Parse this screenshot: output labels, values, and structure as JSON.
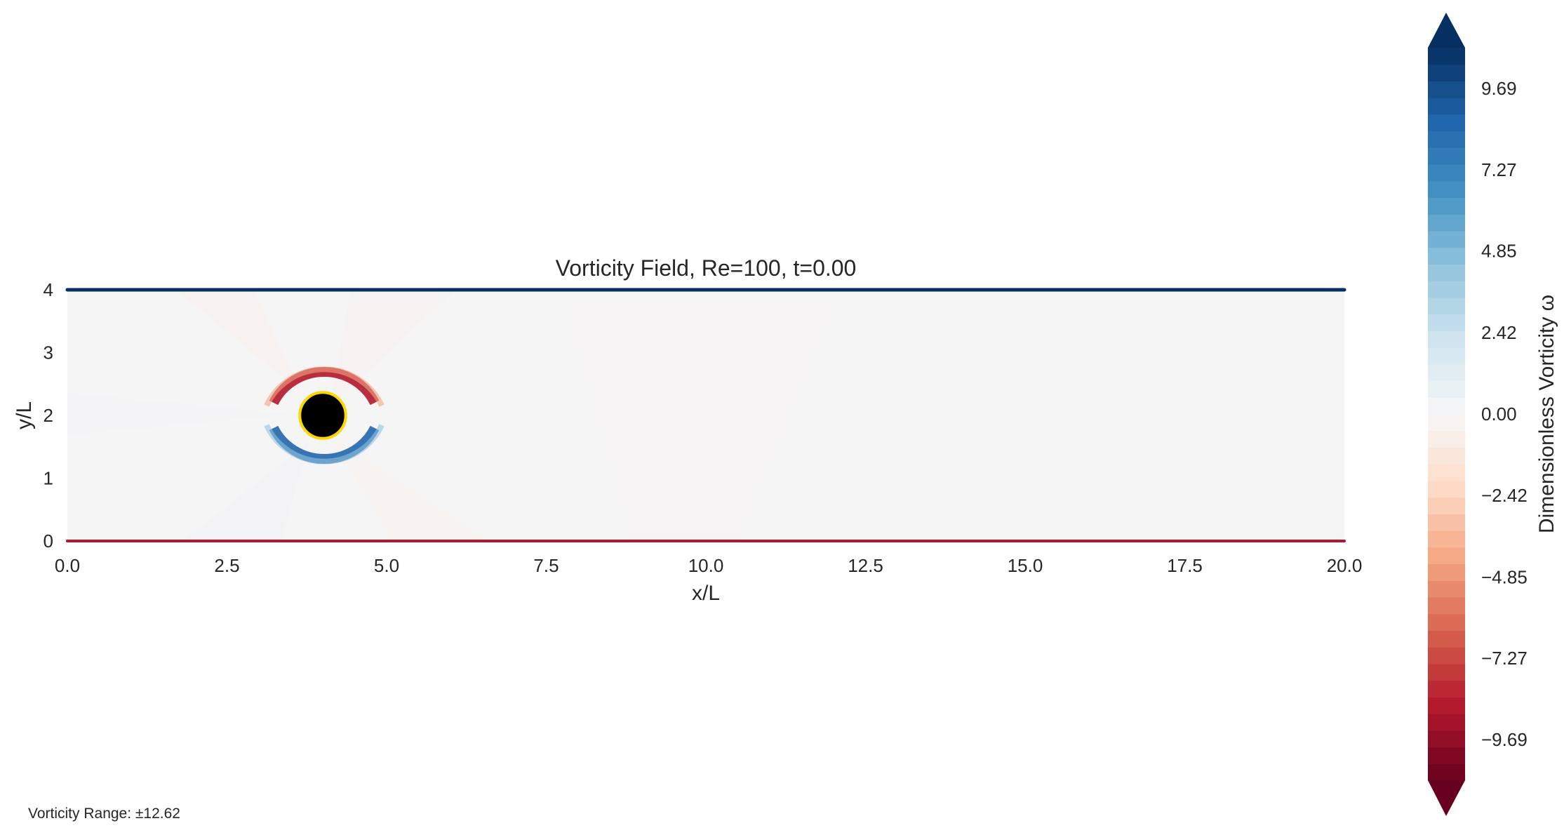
{
  "chart_data": {
    "type": "heatmap",
    "title": "Vorticity Field, Re=100, t=0.00",
    "xlabel": "x/L",
    "ylabel": "y/L",
    "xlim": [
      0,
      20
    ],
    "ylim": [
      0,
      4
    ],
    "x_ticks": [
      "0.0",
      "2.5",
      "5.0",
      "7.5",
      "10.0",
      "12.5",
      "15.0",
      "17.5",
      "20.0"
    ],
    "y_ticks": [
      "0",
      "1",
      "2",
      "3",
      "4"
    ],
    "colormap": "RdBu",
    "obstacle": {
      "shape": "circle",
      "center": [
        4,
        2
      ],
      "radius": 0.5,
      "fill": "#000000",
      "edge": "#ffd700"
    },
    "colorbar": {
      "label": "Dimensionless Vorticity ω",
      "ticks": [
        "9.69",
        "7.27",
        "4.85",
        "2.42",
        "0.00",
        "−2.42",
        "−4.85",
        "−7.27",
        "−9.69"
      ],
      "tick_values": [
        9.69,
        7.27,
        4.85,
        2.42,
        0.0,
        -2.42,
        -4.85,
        -7.27,
        -9.69
      ],
      "range": [
        -10.9,
        10.9
      ],
      "extend": "both"
    },
    "wall_vorticity": {
      "top": "#053061",
      "bottom": "#b2182b"
    },
    "annotation": "Vorticity Range: ±12.62"
  }
}
